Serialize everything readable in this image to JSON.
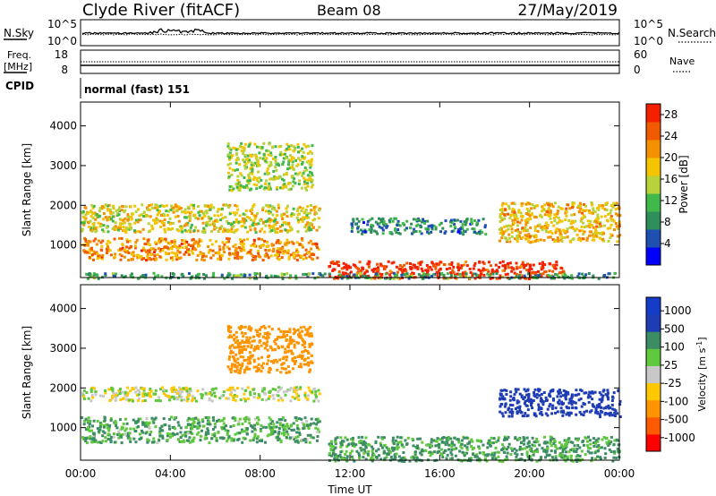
{
  "header": {
    "station": "Clyde River (fitACF)",
    "beam": "Beam 08",
    "date": "27/May/2019"
  },
  "strips": {
    "nsky_label": "N.Sky",
    "nsearch_label": "N.Search",
    "nsky_ticks": [
      "10^5",
      "10^0"
    ],
    "nsearch_ticks": [
      "10^5",
      "10^0"
    ],
    "freq_label_1": "Freq.",
    "freq_label_2": "[MHz]",
    "freq_ticks": [
      "18",
      "8"
    ],
    "nave_label": "Nave",
    "nave_ticks": [
      "60",
      "0"
    ],
    "cpid_label": "CPID",
    "cpid_value": "normal (fast) 151"
  },
  "colors": {
    "power_scale": [
      "#0000ff",
      "#1f4fb0",
      "#2f8f5a",
      "#41b84a",
      "#b8d23a",
      "#f5c400",
      "#f59000",
      "#f25a00",
      "#f52000"
    ],
    "velocity_scale": [
      "#ff0000",
      "#ff5a00",
      "#ff9400",
      "#ffc800",
      "#c8c8c8",
      "#5fc83c",
      "#3c8c64",
      "#1e3cb4",
      "#143cc8"
    ]
  },
  "chart_data": [
    {
      "type": "heatmap",
      "panel": "power",
      "xlabel": "",
      "ylabel": "Slant Range [km]",
      "x_ticks": [
        "00:00",
        "04:00",
        "08:00",
        "12:00",
        "16:00",
        "20:00",
        "00:00"
      ],
      "xlim_hours": [
        0,
        24
      ],
      "y_ticks": [
        "1000",
        "2000",
        "3000",
        "4000"
      ],
      "ylim": [
        180,
        4600
      ],
      "colorbar_label": "Power [dB]",
      "colorbar_ticks": [
        "4",
        "8",
        "12",
        "16",
        "20",
        "24",
        "28"
      ],
      "colorbar_range": [
        0,
        30
      ],
      "scatter_regions": [
        {
          "t0": 0.0,
          "t1": 10.6,
          "r0": 650,
          "r1": 1200,
          "v": 22
        },
        {
          "t0": 0.0,
          "t1": 10.6,
          "r0": 1350,
          "r1": 2050,
          "v": 17
        },
        {
          "t0": 6.5,
          "t1": 10.3,
          "r0": 2400,
          "r1": 3600,
          "v": 15
        },
        {
          "t0": 11.0,
          "t1": 21.5,
          "r0": 180,
          "r1": 620,
          "v": 28
        },
        {
          "t0": 18.6,
          "t1": 24.0,
          "r0": 1100,
          "r1": 2100,
          "v": 19
        },
        {
          "t0": 12.0,
          "t1": 18.0,
          "r0": 1300,
          "r1": 1700,
          "v": 8
        },
        {
          "t0": 0.0,
          "t1": 24.0,
          "r0": 180,
          "r1": 320,
          "v": 10
        }
      ]
    },
    {
      "type": "heatmap",
      "panel": "velocity",
      "xlabel": "Time UT",
      "ylabel": "Slant Range [km]",
      "x_ticks": [
        "00:00",
        "04:00",
        "08:00",
        "12:00",
        "16:00",
        "20:00",
        "00:00"
      ],
      "xlim_hours": [
        0,
        24
      ],
      "y_ticks": [
        "1000",
        "2000",
        "3000",
        "4000"
      ],
      "ylim": [
        180,
        4600
      ],
      "colorbar_label": "Velocity [m s",
      "colorbar_label_superscript": "-1",
      "colorbar_label_close": "]",
      "colorbar_ticks": [
        "1000",
        "500",
        "100",
        "25",
        "-25",
        "-100",
        "-500",
        "-1000"
      ],
      "scatter_regions": [
        {
          "t0": 0.0,
          "t1": 10.6,
          "r0": 650,
          "r1": 1300,
          "v": 100
        },
        {
          "t0": 0.0,
          "t1": 10.6,
          "r0": 1700,
          "r1": 2050,
          "v": 0
        },
        {
          "t0": 6.5,
          "t1": 10.3,
          "r0": 2400,
          "r1": 3600,
          "v": -200
        },
        {
          "t0": 11.0,
          "t1": 24.0,
          "r0": 180,
          "r1": 800,
          "v": 120
        },
        {
          "t0": 18.6,
          "t1": 24.0,
          "r0": 1300,
          "r1": 2000,
          "v": 600
        }
      ]
    }
  ]
}
